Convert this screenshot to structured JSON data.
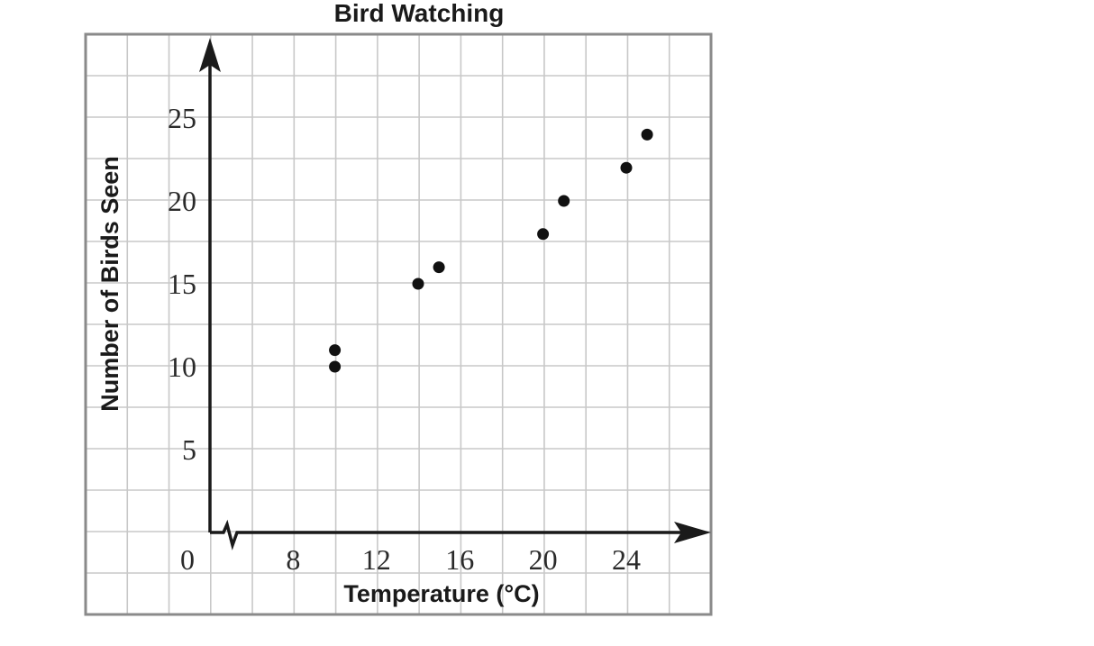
{
  "chart_data": {
    "type": "scatter",
    "title": "Bird Watching",
    "xlabel": "Temperature (°C)",
    "ylabel": "Number of Birds Seen",
    "x_axis_break": true,
    "xlim": [
      4,
      27
    ],
    "ylim": [
      -5,
      30
    ],
    "x_ticks": [
      "0",
      "8",
      "12",
      "16",
      "20",
      "24"
    ],
    "y_ticks": [
      "5",
      "10",
      "15",
      "20",
      "25"
    ],
    "grid": true,
    "points": [
      {
        "x": 10,
        "y": 11
      },
      {
        "x": 10,
        "y": 10
      },
      {
        "x": 14,
        "y": 15
      },
      {
        "x": 15,
        "y": 16
      },
      {
        "x": 20,
        "y": 18
      },
      {
        "x": 21,
        "y": 20
      },
      {
        "x": 24,
        "y": 22
      },
      {
        "x": 25,
        "y": 24
      }
    ],
    "colors": {
      "grid": "#c8c8c8",
      "frame": "#8a8a8a",
      "axis": "#1a1a1a",
      "point": "#111111"
    }
  }
}
